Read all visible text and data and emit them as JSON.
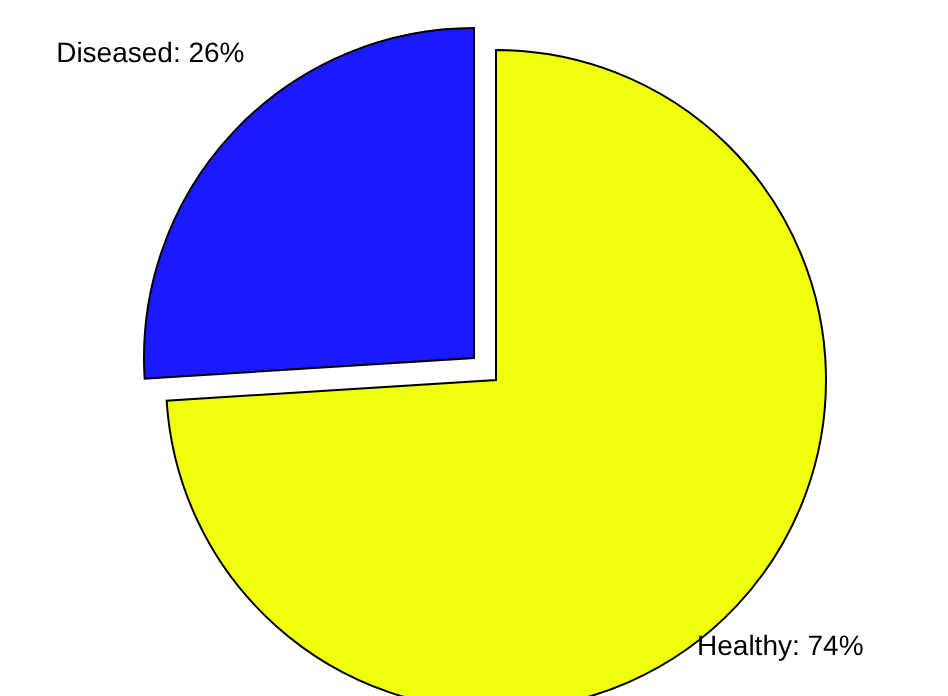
{
  "chart_data": {
    "type": "pie",
    "categories": [
      "Diseased",
      "Healthy"
    ],
    "values": [
      26,
      74
    ],
    "colors": [
      "#1a1aff",
      "#f0ff0a"
    ],
    "value_labels": [
      "26%",
      "74%"
    ]
  }
}
